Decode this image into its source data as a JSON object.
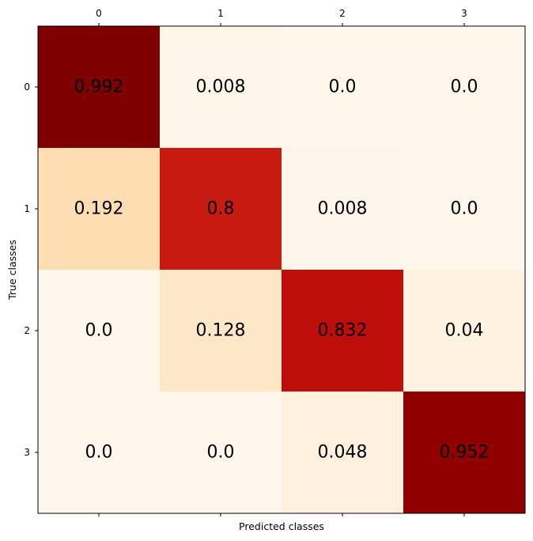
{
  "chart_data": {
    "type": "heatmap",
    "colormap": "OrRd",
    "x_categories": [
      "0",
      "1",
      "2",
      "3"
    ],
    "y_categories": [
      "0",
      "1",
      "2",
      "3"
    ],
    "xlabel": "Predicted classes",
    "ylabel": "True classes",
    "x_tick_position": "top",
    "grid": false,
    "legend": "none",
    "values": [
      [
        0.992,
        0.008,
        0.0,
        0.0
      ],
      [
        0.192,
        0.8,
        0.008,
        0.0
      ],
      [
        0.0,
        0.128,
        0.832,
        0.04
      ],
      [
        0.0,
        0.0,
        0.048,
        0.952
      ]
    ],
    "labels": [
      [
        "0.992",
        "0.008",
        "0.0",
        "0.0"
      ],
      [
        "0.192",
        "0.8",
        "0.008",
        "0.0"
      ],
      [
        "0.0",
        "0.128",
        "0.832",
        "0.04"
      ],
      [
        "0.0",
        "0.0",
        "0.048",
        "0.952"
      ]
    ],
    "value_range": [
      0.0,
      0.992
    ]
  }
}
